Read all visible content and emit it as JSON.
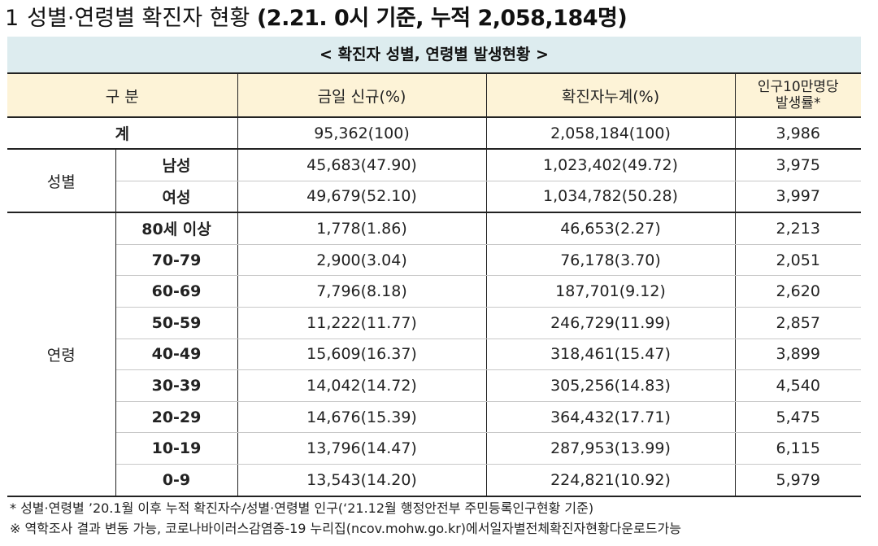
{
  "heading": {
    "number": "1",
    "title": "성별·연령별 확진자 현황",
    "basis": "(2.21. 0시 기준, 누적 2,058,184명)"
  },
  "table": {
    "caption": "< 확진자 성별, 연령별 발생현황 >",
    "headers": [
      "구 분",
      "금일 신규(%)",
      "확진자누계(%)",
      "인구10만명당",
      "발생률*"
    ],
    "total": {
      "label": "계",
      "new": "95,362(100)",
      "cumulative": "2,058,184(100)",
      "rate": "3,986"
    },
    "gender": {
      "label": "성별",
      "rows": [
        {
          "label": "남성",
          "new": "45,683(47.90)",
          "cumulative": "1,023,402(49.72)",
          "rate": "3,975"
        },
        {
          "label": "여성",
          "new": "49,679(52.10)",
          "cumulative": "1,034,782(50.28)",
          "rate": "3,997"
        }
      ]
    },
    "age": {
      "label": "연령",
      "rows": [
        {
          "label": "80세 이상",
          "new": "1,778(1.86)",
          "cumulative": "46,653(2.27)",
          "rate": "2,213"
        },
        {
          "label": "70-79",
          "new": "2,900(3.04)",
          "cumulative": "76,178(3.70)",
          "rate": "2,051"
        },
        {
          "label": "60-69",
          "new": "7,796(8.18)",
          "cumulative": "187,701(9.12)",
          "rate": "2,620"
        },
        {
          "label": "50-59",
          "new": "11,222(11.77)",
          "cumulative": "246,729(11.99)",
          "rate": "2,857"
        },
        {
          "label": "40-49",
          "new": "15,609(16.37)",
          "cumulative": "318,461(15.47)",
          "rate": "3,899"
        },
        {
          "label": "30-39",
          "new": "14,042(14.72)",
          "cumulative": "305,256(14.83)",
          "rate": "4,540"
        },
        {
          "label": "20-29",
          "new": "14,676(15.39)",
          "cumulative": "364,432(17.71)",
          "rate": "5,475"
        },
        {
          "label": "10-19",
          "new": "13,796(14.47)",
          "cumulative": "287,953(13.99)",
          "rate": "6,115"
        },
        {
          "label": "0-9",
          "new": "13,543(14.20)",
          "cumulative": "224,821(10.92)",
          "rate": "5,979"
        }
      ]
    }
  },
  "notes": [
    "* 성별·연령별 ’20.1월 이후 누적 확진자수/성별·연령별 인구(‘21.12월 행정안전부 주민등록인구현황 기준)",
    "※ 역학조사 결과 변동 가능, 코로나바이러스감염증-19 누리집(ncov.mohw.go.kr)에서일자별전체확진자현황다운로드가능"
  ]
}
